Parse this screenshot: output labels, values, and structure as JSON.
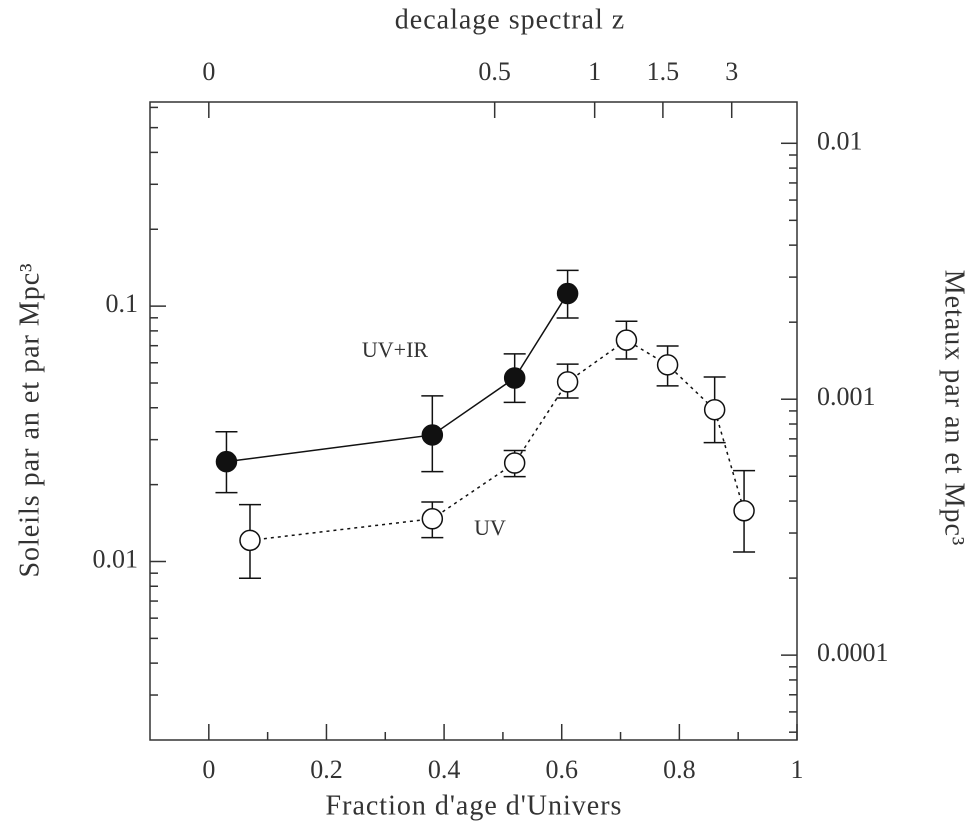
{
  "chart_data": {
    "type": "scatter",
    "title": "decalage spectral z",
    "xlabel": "Fraction d'age d'Univers",
    "ylabel": "Soleils par an et par Mpc³",
    "y2label": "Metaux par an et Mpc³",
    "xlim": [
      -0.1,
      1
    ],
    "xticks": [
      0,
      0.2,
      0.4,
      0.6,
      0.8,
      1
    ],
    "xminor_ticks": [
      0.1,
      0.3,
      0.5,
      0.7,
      0.9
    ],
    "ylim": [
      0.002,
      0.63
    ],
    "log_y": true,
    "yticks": [
      0.01,
      0.1
    ],
    "yminor_ticks": [
      0.003,
      0.004,
      0.005,
      0.006,
      0.007,
      0.008,
      0.009,
      0.02,
      0.03,
      0.04,
      0.05,
      0.06,
      0.07,
      0.08,
      0.09,
      0.2,
      0.3,
      0.4,
      0.5,
      0.6
    ],
    "y2lim": [
      4.66e-05,
      0.0145
    ],
    "y2ticks": [
      0.0001,
      0.001,
      0.01
    ],
    "y2minor_ticks": [
      5e-05,
      6e-05,
      7e-05,
      8e-05,
      9e-05,
      0.0002,
      0.0003,
      0.0004,
      0.0005,
      0.0006,
      0.0007,
      0.0008,
      0.0009,
      0.002,
      0.003,
      0.004,
      0.005,
      0.006,
      0.007,
      0.008,
      0.009
    ],
    "z_ticks": [
      {
        "z": 0,
        "age_fraction": 0
      },
      {
        "z": 0.5,
        "age_fraction": 0.486
      },
      {
        "z": 1,
        "age_fraction": 0.656
      },
      {
        "z": 1.5,
        "age_fraction": 0.772
      },
      {
        "z": 3,
        "age_fraction": 0.889
      }
    ],
    "series": [
      {
        "name": "UV+IR",
        "color": "#111111",
        "filled": true,
        "line": "solid",
        "x": [
          0.03,
          0.38,
          0.52,
          0.61
        ],
        "values": [
          0.0246,
          0.0313,
          0.0523,
          0.112
        ],
        "lower": [
          0.0186,
          0.0225,
          0.042,
          0.0898
        ],
        "upper": [
          0.0322,
          0.0445,
          0.065,
          0.138
        ]
      },
      {
        "name": "UV",
        "color": "#111111",
        "filled": false,
        "line": "dotted",
        "x": [
          0.07,
          0.38,
          0.52,
          0.61,
          0.71,
          0.78,
          0.86,
          0.91
        ],
        "values": [
          0.0121,
          0.0147,
          0.0243,
          0.0505,
          0.0736,
          0.0589,
          0.0393,
          0.0158
        ],
        "lower": [
          0.0086,
          0.0124,
          0.0215,
          0.0437,
          0.0621,
          0.0487,
          0.0292,
          0.0109
        ],
        "upper": [
          0.0167,
          0.0171,
          0.0272,
          0.0593,
          0.0873,
          0.0698,
          0.0528,
          0.0227
        ]
      }
    ]
  }
}
